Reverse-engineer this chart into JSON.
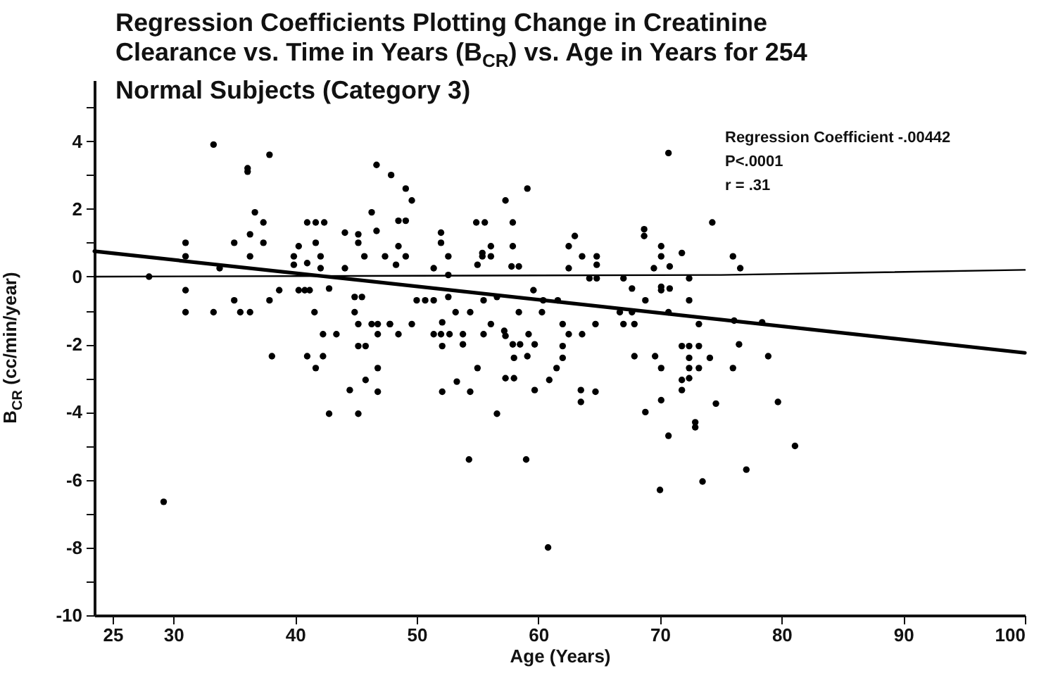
{
  "chart_data": {
    "type": "scatter",
    "title": "Regression Coefficients Plotting Change in Creatinine Clearance vs. Time in Years (B$_{CR}$) vs. Age in Years for 254 Normal Subjects (Category 3)",
    "xlabel": "Age (Years)",
    "ylabel": "B$_{CR}$ (cc/min/year)",
    "annotations": [
      "Regression Coefficient -.00442",
      "P<.0001",
      "r = .31"
    ],
    "xlim": [
      23.5,
      100
    ],
    "xticks": [
      25,
      30,
      40,
      50,
      60,
      70,
      80,
      90,
      100
    ],
    "ylim": [
      -10,
      5.8
    ],
    "yticks": [
      -10,
      {
        "value": -9,
        "label": null
      },
      -8,
      {
        "value": -7,
        "label": null
      },
      -6,
      {
        "value": -5,
        "label": null
      },
      -4,
      {
        "value": -3,
        "label": null
      },
      -2,
      {
        "value": -1,
        "label": null
      },
      0,
      {
        "value": 1,
        "label": null
      },
      2,
      {
        "value": 3,
        "label": null
      },
      4,
      {
        "value": 5,
        "label": null
      }
    ],
    "grid": false,
    "series": [
      {
        "type": "scatter",
        "color": "#000000",
        "marker": "circle",
        "x": [
          28,
          31,
          31,
          31,
          31,
          33.3,
          33.3,
          33.8,
          35,
          35,
          35.5,
          36.3,
          36.1,
          36.1,
          36.3,
          36.3,
          36.7,
          37.4,
          37.4,
          37.9,
          37.9,
          38.7,
          39.9,
          39.9,
          40.3,
          40.3,
          40.8,
          41.2,
          41,
          41,
          41.7,
          42.4,
          41.7,
          41.6,
          42.1,
          42.1,
          42.8,
          44.1,
          44.1,
          45.2,
          45.2,
          45.7,
          46.3,
          46.7,
          46.7,
          47.9,
          47.4,
          44.9,
          45.5,
          44.9,
          45.2,
          46.3,
          46.8,
          47.8,
          42.3,
          43.4,
          46.8,
          45.2,
          45.8,
          38.1,
          41,
          42.3,
          41.7,
          46.8,
          45.8,
          44.5,
          46.8,
          42.8,
          45.2,
          29.2,
          49.1,
          49.6,
          48.5,
          49.1,
          48.5,
          49.1,
          48.3,
          52,
          52,
          52.6,
          51.4,
          52.6,
          54.9,
          55.6,
          56.1,
          55.4,
          55.4,
          56.1,
          55,
          57.3,
          57.9,
          57.9,
          57.8,
          58.4,
          59.1,
          59.6,
          62.5,
          63,
          62.5,
          63.6,
          64.8,
          64.8,
          64.2,
          64.8,
          67,
          67.7,
          68.7,
          68.7,
          70.1,
          70.1,
          69.5,
          70.8,
          70.1,
          70.1,
          70.8,
          70.7,
          71.8,
          68.8,
          58.4,
          60.3,
          53.2,
          54.4,
          50,
          50.7,
          51.4,
          52.6,
          55.5,
          56.6,
          60.4,
          61.6,
          66.7,
          67.7,
          70.7,
          47.8,
          49.6,
          48.5,
          51.4,
          52,
          52.7,
          53.8,
          52.1,
          52.1,
          53.8,
          56.1,
          55.5,
          57.2,
          57.3,
          57.9,
          58.5,
          59.2,
          59.7,
          58,
          59.1,
          55,
          57.3,
          58,
          53.3,
          52.1,
          54.4,
          56.6,
          59.7,
          62,
          62.5,
          63.6,
          62,
          62,
          61.5,
          60.9,
          63.5,
          64.7,
          63.5,
          64.7,
          67,
          67.9,
          67.9,
          69.6,
          70.1,
          68.8,
          70.1,
          70.7,
          70,
          54.3,
          59,
          60.8,
          71.8,
          71.8,
          71.8,
          72.4,
          73.2,
          72.4,
          72.4,
          73.2,
          72.4,
          74.1,
          76.5,
          76,
          78.9,
          74.6,
          79.7,
          72.9,
          72.9,
          81.1,
          77.1,
          73.5,
          73.2,
          76.1,
          78.4,
          74.3,
          76,
          76.6,
          72.4,
          72.4
        ],
        "values": [
          0,
          1.0,
          0.6,
          -0.4,
          -1.05,
          3.9,
          -1.05,
          0.25,
          1.0,
          -0.7,
          -1.05,
          -1.05,
          3.2,
          3.1,
          1.25,
          0.6,
          1.9,
          1.6,
          1.0,
          3.6,
          -0.7,
          -0.4,
          0.6,
          0.35,
          0.9,
          -0.4,
          -0.4,
          -0.4,
          0.4,
          1.6,
          1.6,
          1.6,
          1.0,
          -1.05,
          0.6,
          0.25,
          -0.35,
          1.3,
          0.25,
          1.25,
          1.0,
          0.6,
          1.9,
          3.3,
          1.35,
          3.0,
          0.6,
          -0.6,
          -0.6,
          -1.05,
          -1.4,
          -1.4,
          -1.4,
          -1.4,
          -1.7,
          -1.7,
          -1.7,
          -2.05,
          -2.05,
          -2.35,
          -2.35,
          -2.35,
          -2.7,
          -2.7,
          -3.05,
          -3.35,
          -3.4,
          -4.05,
          -4.05,
          -6.65,
          2.6,
          2.25,
          1.65,
          1.65,
          0.9,
          0.6,
          0.35,
          1.3,
          1.0,
          0.6,
          0.25,
          0.05,
          1.6,
          1.6,
          0.9,
          0.7,
          0.6,
          0.6,
          0.35,
          2.25,
          1.6,
          0.9,
          0.3,
          0.3,
          2.6,
          -0.4,
          0.9,
          1.2,
          0.25,
          0.6,
          0.6,
          0.35,
          -0.05,
          -0.05,
          -0.05,
          -0.35,
          1.4,
          1.2,
          0.9,
          0.6,
          0.25,
          0.3,
          -0.3,
          -0.4,
          -0.35,
          3.65,
          0.7,
          -0.7,
          -1.05,
          -1.05,
          -1.05,
          -1.05,
          -0.7,
          -0.7,
          -0.7,
          -0.6,
          -0.7,
          -0.6,
          -0.7,
          -0.7,
          -1.05,
          -1.05,
          -1.05,
          -1.4,
          -1.4,
          -1.7,
          -1.7,
          -1.7,
          -1.7,
          -1.7,
          -1.35,
          -2.05,
          -2.0,
          -1.4,
          -1.7,
          -1.6,
          -1.75,
          -2.0,
          -2.0,
          -1.7,
          -2.0,
          -2.4,
          -2.35,
          -2.7,
          -3.0,
          -3.0,
          -3.1,
          -3.4,
          -3.4,
          -4.05,
          -3.35,
          -1.4,
          -1.7,
          -1.7,
          -2.05,
          -2.4,
          -2.7,
          -3.05,
          -3.35,
          -3.4,
          -3.7,
          -1.4,
          -1.4,
          -1.4,
          -2.35,
          -2.35,
          -2.7,
          -4.0,
          -3.65,
          -4.7,
          -6.3,
          -5.4,
          -5.4,
          -8.0,
          -2.05,
          -3.05,
          -3.35,
          -2.05,
          -2.05,
          -2.4,
          -2.7,
          -2.7,
          -3.0,
          -2.4,
          -2.0,
          -2.7,
          -2.35,
          -3.75,
          -3.7,
          -4.3,
          -4.45,
          -5.0,
          -5.7,
          -6.05,
          -1.4,
          -1.3,
          -1.35,
          1.6,
          0.6,
          0.25,
          -0.05,
          -0.7
        ]
      },
      {
        "type": "line",
        "color": "#000000",
        "x": [
          23.5,
          100
        ],
        "values": [
          0.75,
          -2.25
        ]
      },
      {
        "type": "line",
        "color": "#000000",
        "line_style": "solid",
        "x": [
          23.5,
          75,
          100
        ],
        "values": [
          0,
          0.05,
          0.2
        ]
      }
    ]
  }
}
